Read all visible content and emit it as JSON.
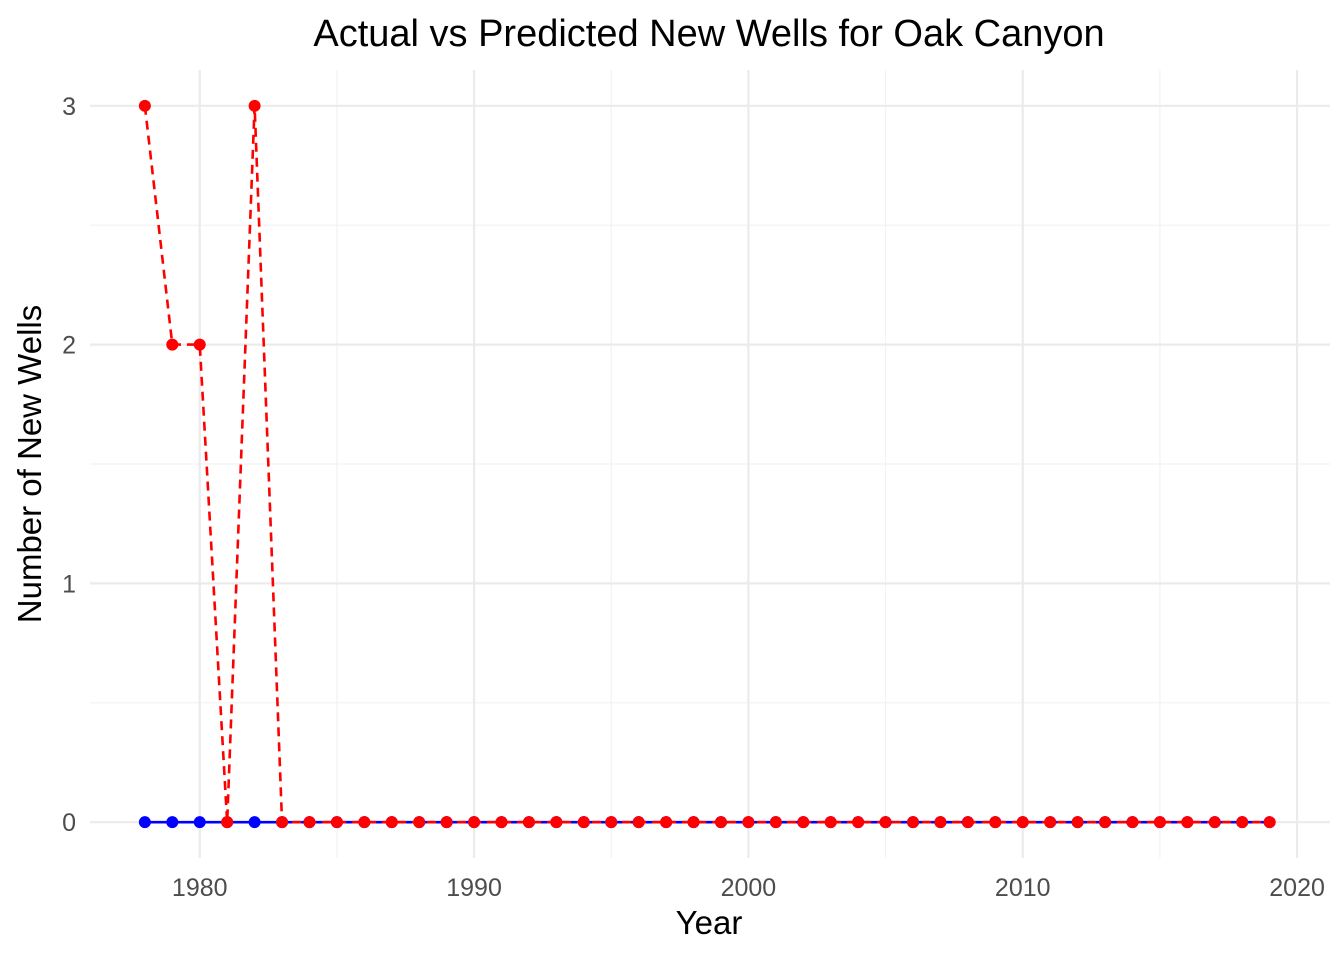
{
  "chart_data": {
    "type": "line",
    "title": "Actual vs Predicted New Wells for Oak Canyon",
    "xlabel": "Year",
    "ylabel": "Number of New Wells",
    "xlim": [
      1976,
      2021.2
    ],
    "ylim": [
      -0.15,
      3.15
    ],
    "x_ticks": [
      1980,
      1990,
      2000,
      2010,
      2020
    ],
    "y_ticks": [
      0,
      1,
      2,
      3
    ],
    "grid": true,
    "legend": "none",
    "x": [
      1978,
      1979,
      1980,
      1981,
      1982,
      1983,
      1984,
      1985,
      1986,
      1987,
      1988,
      1989,
      1990,
      1991,
      1992,
      1993,
      1994,
      1995,
      1996,
      1997,
      1998,
      1999,
      2000,
      2001,
      2002,
      2003,
      2004,
      2005,
      2006,
      2007,
      2008,
      2009,
      2010,
      2011,
      2012,
      2013,
      2014,
      2015,
      2016,
      2017,
      2018,
      2019
    ],
    "series": [
      {
        "color": "#0000ff",
        "line_style": "solid",
        "values": [
          0,
          0,
          0,
          0,
          0,
          0,
          0,
          0,
          0,
          0,
          0,
          0,
          0,
          0,
          0,
          0,
          0,
          0,
          0,
          0,
          0,
          0,
          0,
          0,
          0,
          0,
          0,
          0,
          0,
          0,
          0,
          0,
          0,
          0,
          0,
          0,
          0,
          0,
          0,
          0,
          0,
          0
        ]
      },
      {
        "color": "#ff0000",
        "line_style": "dashed",
        "values": [
          3,
          2,
          2,
          0,
          3,
          0,
          0,
          0,
          0,
          0,
          0,
          0,
          0,
          0,
          0,
          0,
          0,
          0,
          0,
          0,
          0,
          0,
          0,
          0,
          0,
          0,
          0,
          0,
          0,
          0,
          0,
          0,
          0,
          0,
          0,
          0,
          0,
          0,
          0,
          0,
          0,
          0
        ]
      }
    ]
  }
}
